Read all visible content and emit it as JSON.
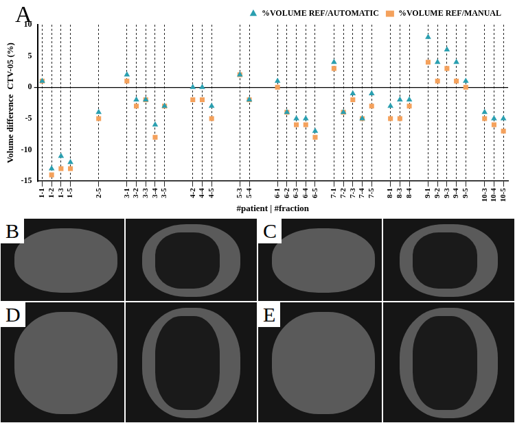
{
  "chart_data": {
    "type": "scatter",
    "annotations": [
      "A"
    ],
    "x_label": "#patient | #fraction",
    "y_label": "Volume difference  CTV-05 (%)",
    "categories": [
      "1-1",
      "1-2",
      "1-3",
      "1-5",
      null,
      null,
      "2-5",
      null,
      null,
      "3-1",
      "3-2",
      "3-3",
      "3-4",
      "3-5",
      null,
      null,
      "4-2",
      "4-4",
      "4-5",
      null,
      null,
      "5-3",
      "5-4",
      null,
      null,
      "6-1",
      "6-2",
      "6-3",
      "6-4",
      "6-5",
      null,
      "7-1",
      "7-2",
      "7-3",
      "7-4",
      "7-5",
      null,
      "8-1",
      "8-3",
      "8-4",
      null,
      "9-1",
      "9-2",
      "9-3",
      "9-4",
      "9-5",
      null,
      "10-3",
      "10-4",
      "10-5"
    ],
    "series": [
      {
        "name": "%VOLUME REF/MANUAL",
        "color": "#f4a15c",
        "marker": "square",
        "values": [
          1,
          -14,
          -13,
          -13,
          null,
          null,
          -5,
          null,
          null,
          1,
          -3,
          -2,
          -8,
          -3,
          null,
          null,
          -2,
          -2,
          -5,
          null,
          null,
          2,
          -2,
          null,
          null,
          0,
          -4,
          -6,
          -6,
          -8,
          null,
          3,
          -4,
          -2,
          -5,
          -3,
          null,
          -5,
          -5,
          -3,
          null,
          4,
          1,
          3,
          1,
          0,
          null,
          -5,
          -6,
          -7
        ]
      },
      {
        "name": "%VOLUME REF/AUTOMATIC",
        "color": "#2a9fb0",
        "marker": "triangle",
        "values": [
          1,
          -13,
          -11,
          -12,
          null,
          null,
          -4,
          null,
          null,
          2,
          -2,
          -2,
          -6,
          -3,
          null,
          null,
          0,
          0,
          -3,
          null,
          null,
          2,
          -2,
          null,
          null,
          1,
          -4,
          -5,
          -5,
          -7,
          null,
          4,
          -4,
          -1,
          -5,
          -1,
          null,
          -3,
          -2,
          -2,
          null,
          8,
          4,
          6,
          4,
          1,
          null,
          -4,
          -5,
          -5
        ]
      }
    ],
    "ylim": [
      -15,
      10
    ],
    "yticks": [
      -15,
      -10,
      -5,
      0,
      5,
      10
    ],
    "grid": true,
    "legend": "top-right"
  },
  "image_panels": [
    {
      "label": "B"
    },
    {
      "label": "C"
    },
    {
      "label": "D"
    },
    {
      "label": "E"
    }
  ]
}
